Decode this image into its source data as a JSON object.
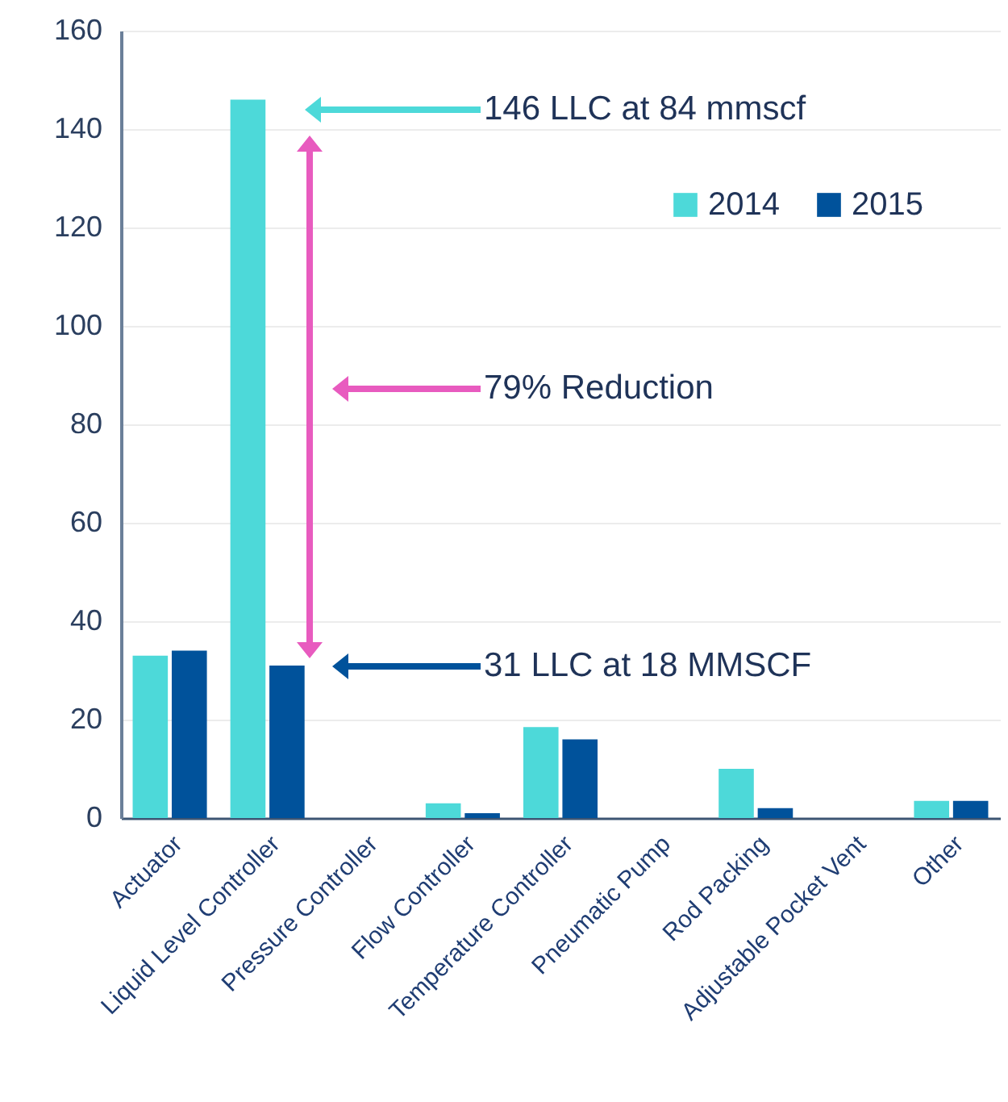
{
  "chart_data": {
    "type": "bar",
    "categories": [
      "Actuator",
      "Liquid Level Controller",
      "Pressure Controller",
      "Flow Controller",
      "Temperature Controller",
      "Pneumatic Pump",
      "Rod Packing",
      "Adjustable Pocket Vent",
      "Other"
    ],
    "series": [
      {
        "name": "2014",
        "color": "#4dd9d9",
        "values": [
          33,
          146,
          0,
          3,
          18.5,
          0,
          10,
          0,
          3.5
        ]
      },
      {
        "name": "2015",
        "color": "#00529b",
        "values": [
          34,
          31,
          0,
          1,
          16,
          0,
          2,
          0,
          3.5
        ]
      }
    ],
    "ylim": [
      0,
      160
    ],
    "yticks": [
      0,
      20,
      40,
      60,
      80,
      100,
      120,
      140,
      160
    ],
    "grid": "y",
    "legend": "top right",
    "annotations": [
      "146 LLC at 84 mmscf",
      "79% Reduction",
      "31 LLC at 18 MMSCF"
    ]
  }
}
